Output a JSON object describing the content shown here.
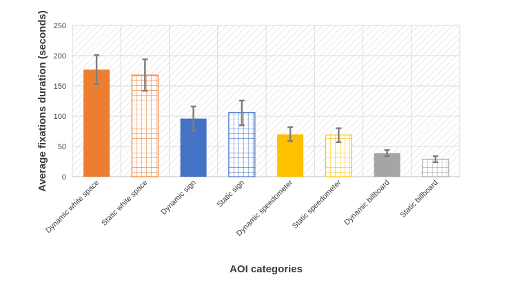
{
  "chart_data": {
    "type": "bar",
    "xlabel": "AOI categories",
    "ylabel": "Average fixations duration (seconds)",
    "ylim": [
      0,
      250
    ],
    "yticks": [
      0,
      50,
      100,
      150,
      200,
      250
    ],
    "grid": true,
    "categories": [
      "Dynamic white space",
      "Static white space",
      "Dynamic sign",
      "Static sign",
      "Dynamic speedometer",
      "Static speedometer",
      "Dynamic billboard",
      "Static billboard"
    ],
    "values": [
      177,
      168,
      96,
      106,
      70,
      69,
      39,
      29
    ],
    "error_low": [
      153,
      142,
      76,
      85,
      59,
      57,
      34,
      24
    ],
    "error_high": [
      201,
      194,
      116,
      126,
      82,
      80,
      44,
      34
    ],
    "fill_styles": [
      "solid",
      "grid",
      "solid",
      "grid",
      "solid",
      "grid",
      "solid",
      "grid"
    ],
    "colors": [
      "#ED7D31",
      "#ED7D31",
      "#4472C4",
      "#4472C4",
      "#FFC000",
      "#FFC000",
      "#A5A5A5",
      "#A5A5A5"
    ],
    "error_bar_color": "#7F7F7F"
  }
}
